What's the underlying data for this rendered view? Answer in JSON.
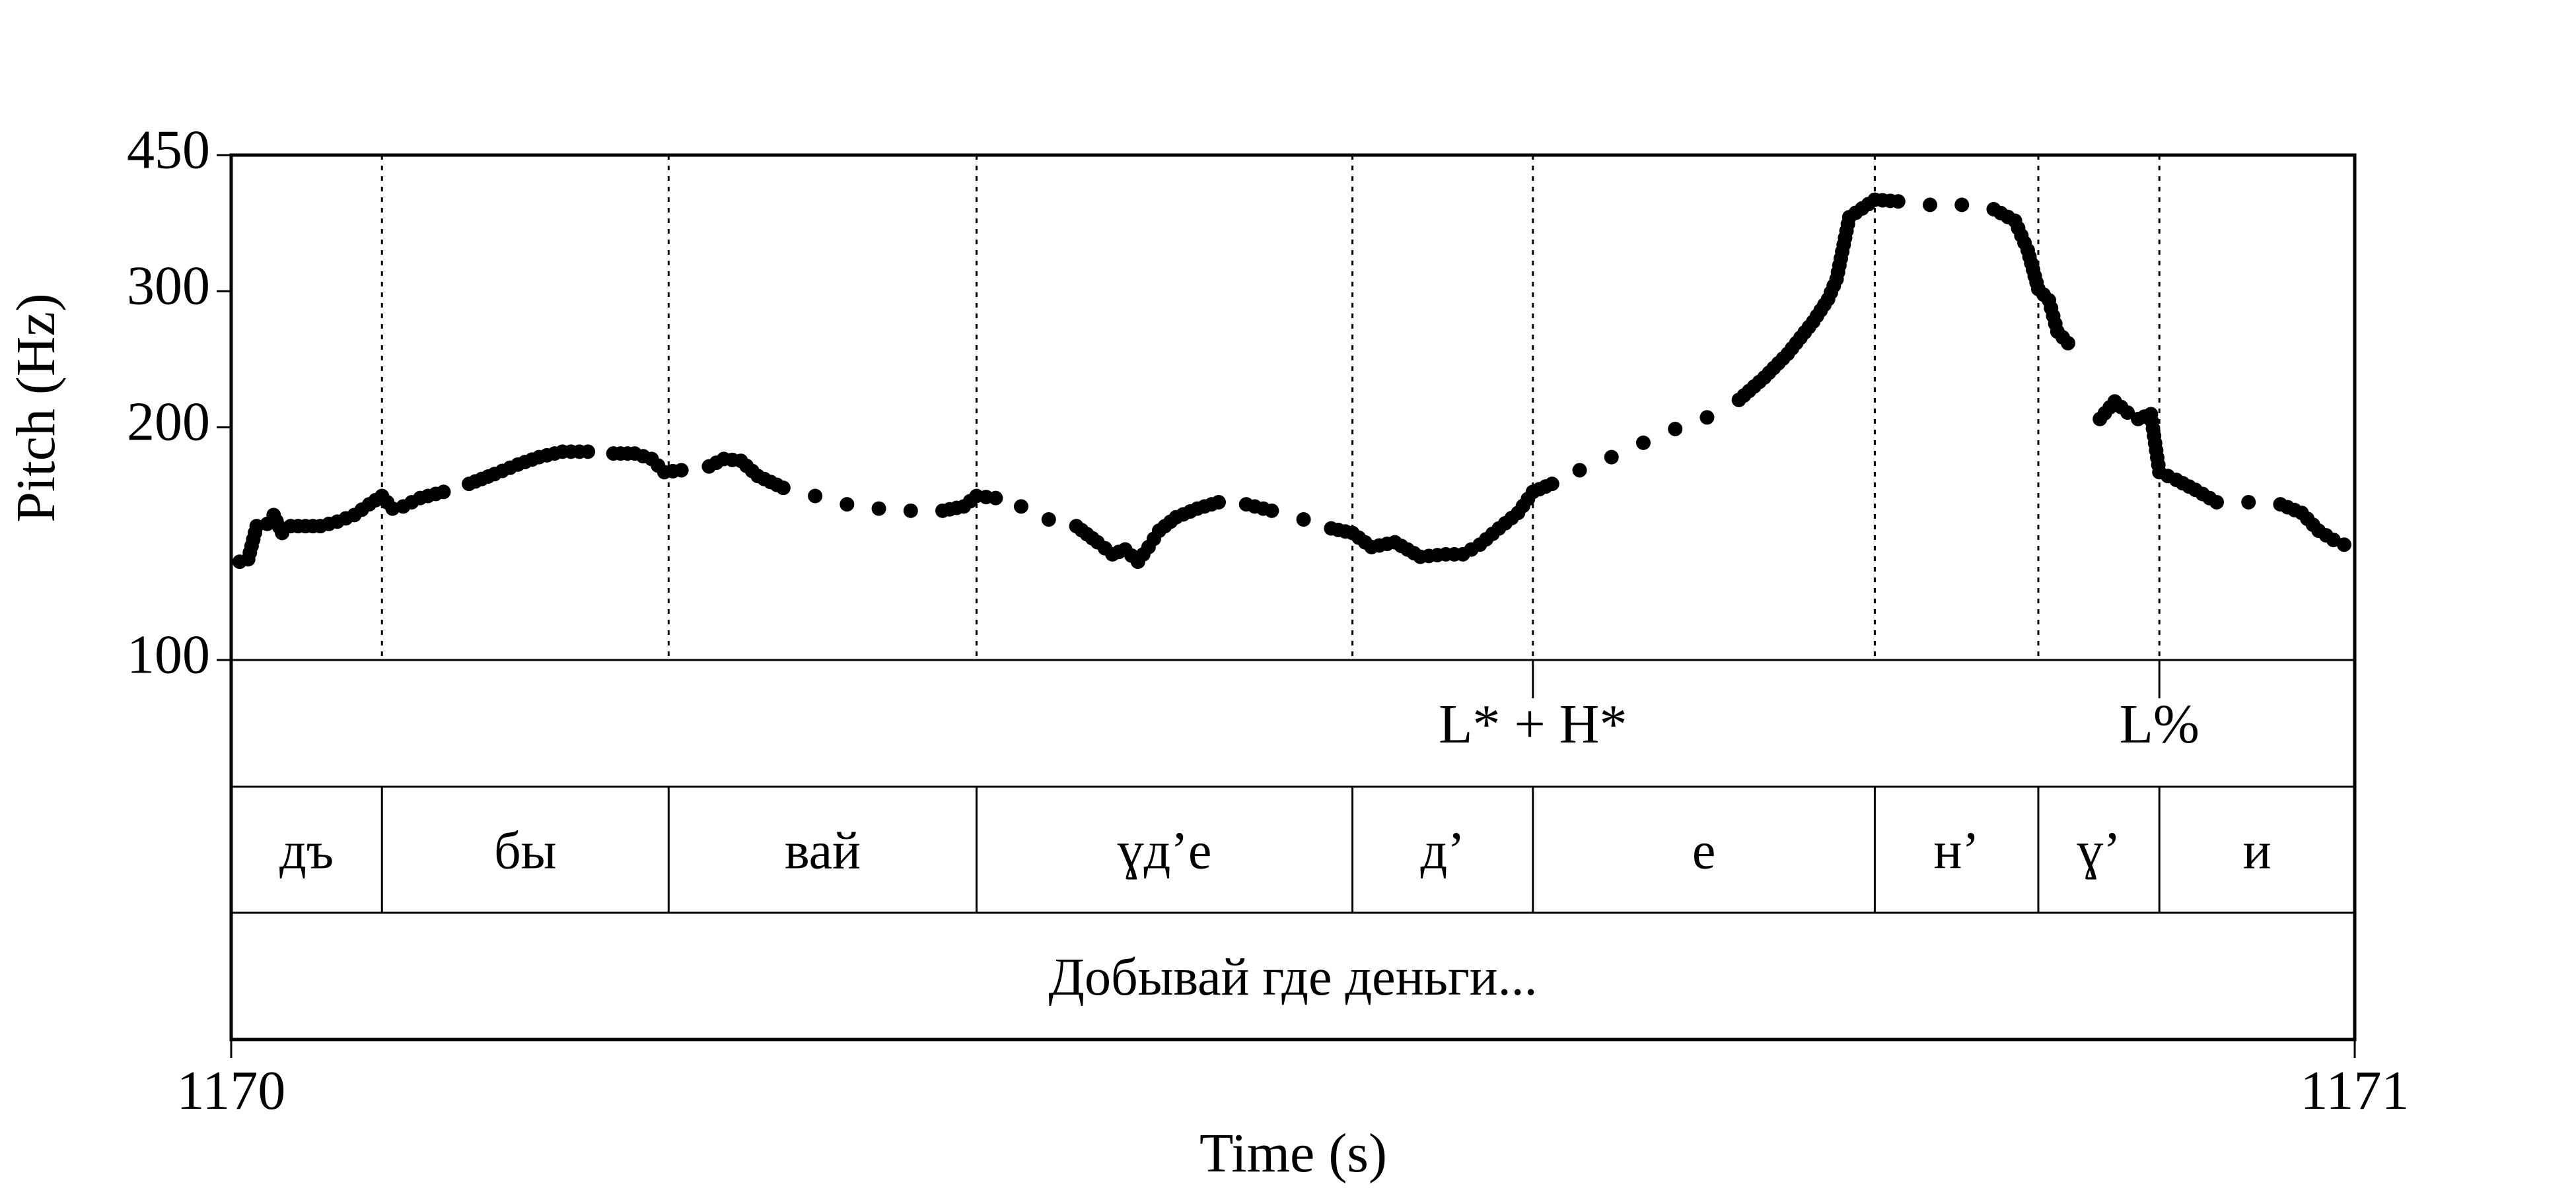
{
  "chart_data": {
    "type": "scatter",
    "title": "",
    "xlabel": "Time (s)",
    "ylabel": "Pitch (Hz)",
    "xlim": [
      1170,
      1171
    ],
    "ylim": [
      100,
      450
    ],
    "y_scale": "log",
    "x_ticks": [
      "1170",
      "1171"
    ],
    "y_ticks": [
      "100",
      "200",
      "300",
      "450"
    ],
    "segment_boundaries": [
      1170.071,
      1170.206,
      1170.351,
      1170.528,
      1170.613,
      1170.774,
      1170.851,
      1170.908
    ],
    "tone_tier": [
      {
        "label": "L* + H*",
        "time": 1170.613
      },
      {
        "label": "L%",
        "time": 1170.908
      }
    ],
    "segment_tier": [
      {
        "label": "дъ",
        "start": 1170.0,
        "end": 1170.071
      },
      {
        "label": "бы",
        "start": 1170.071,
        "end": 1170.206
      },
      {
        "label": "вай",
        "start": 1170.206,
        "end": 1170.351
      },
      {
        "label": "ɣд’е",
        "start": 1170.351,
        "end": 1170.528
      },
      {
        "label": "д’",
        "start": 1170.528,
        "end": 1170.613
      },
      {
        "label": "е",
        "start": 1170.613,
        "end": 1170.774
      },
      {
        "label": "н’",
        "start": 1170.774,
        "end": 1170.851
      },
      {
        "label": "ɣ’",
        "start": 1170.851,
        "end": 1170.908
      },
      {
        "label": "и",
        "start": 1170.908,
        "end": 1171.0
      }
    ],
    "phrase_tier": [
      {
        "label": "Добывай где деньги...",
        "start": 1170.0,
        "end": 1171.0
      }
    ],
    "pitch_series": [
      {
        "name": "",
        "points": [
          [
            1170.004,
            134
          ],
          [
            1170.008,
            135
          ],
          [
            1170.012,
            149
          ],
          [
            1170.017,
            150
          ],
          [
            1170.02,
            154
          ],
          [
            1170.024,
            146
          ],
          [
            1170.028,
            149
          ],
          [
            1170.035,
            149
          ],
          [
            1170.042,
            149
          ],
          [
            1170.05,
            151
          ],
          [
            1170.058,
            154
          ],
          [
            1170.065,
            159
          ],
          [
            1170.071,
            163
          ],
          [
            1170.076,
            157
          ],
          [
            1170.081,
            158
          ],
          [
            1170.089,
            162
          ],
          [
            1170.1,
            165
          ],
          [
            1170.112,
            169
          ],
          [
            1170.124,
            174
          ],
          [
            1170.135,
            179
          ],
          [
            1170.145,
            183
          ],
          [
            1170.156,
            186
          ],
          [
            1170.168,
            186
          ],
          [
            1170.18,
            185
          ],
          [
            1170.19,
            185
          ],
          [
            1170.198,
            182
          ],
          [
            1170.204,
            175
          ],
          [
            1170.212,
            176
          ],
          [
            1170.225,
            178
          ],
          [
            1170.232,
            182
          ],
          [
            1170.24,
            181
          ],
          [
            1170.248,
            173
          ],
          [
            1170.26,
            167
          ],
          [
            1170.275,
            163
          ],
          [
            1170.29,
            159
          ],
          [
            1170.305,
            157
          ],
          [
            1170.32,
            156
          ],
          [
            1170.335,
            156
          ],
          [
            1170.345,
            158
          ],
          [
            1170.351,
            163
          ],
          [
            1170.36,
            162
          ],
          [
            1170.372,
            158
          ],
          [
            1170.385,
            152
          ],
          [
            1170.398,
            149
          ],
          [
            1170.408,
            142
          ],
          [
            1170.415,
            137
          ],
          [
            1170.421,
            139
          ],
          [
            1170.427,
            134
          ],
          [
            1170.432,
            140
          ],
          [
            1170.437,
            147
          ],
          [
            1170.445,
            153
          ],
          [
            1170.455,
            157
          ],
          [
            1170.465,
            160
          ],
          [
            1170.478,
            159
          ],
          [
            1170.49,
            156
          ],
          [
            1170.505,
            152
          ],
          [
            1170.518,
            148
          ],
          [
            1170.528,
            146
          ],
          [
            1170.537,
            140
          ],
          [
            1170.548,
            142
          ],
          [
            1170.56,
            136
          ],
          [
            1170.572,
            137
          ],
          [
            1170.58,
            137
          ],
          [
            1170.588,
            141
          ],
          [
            1170.597,
            148
          ],
          [
            1170.606,
            155
          ],
          [
            1170.613,
            165
          ],
          [
            1170.622,
            169
          ],
          [
            1170.635,
            176
          ],
          [
            1170.65,
            183
          ],
          [
            1170.665,
            191
          ],
          [
            1170.68,
            199
          ],
          [
            1170.695,
            206
          ],
          [
            1170.71,
            217
          ],
          [
            1170.722,
            232
          ],
          [
            1170.733,
            249
          ],
          [
            1170.745,
            274
          ],
          [
            1170.752,
            293
          ],
          [
            1170.756,
            311
          ],
          [
            1170.762,
            374
          ],
          [
            1170.774,
            394
          ],
          [
            1170.785,
            392
          ],
          [
            1170.8,
            388
          ],
          [
            1170.815,
            388
          ],
          [
            1170.83,
            383
          ],
          [
            1170.84,
            370
          ],
          [
            1170.846,
            339
          ],
          [
            1170.851,
            302
          ],
          [
            1170.856,
            292
          ],
          [
            1170.86,
            266
          ],
          [
            1170.865,
            257
          ],
          [
            1170.88,
            205
          ],
          [
            1170.887,
            216
          ],
          [
            1170.893,
            209
          ],
          [
            1170.898,
            205
          ],
          [
            1170.904,
            208
          ],
          [
            1170.908,
            175
          ],
          [
            1170.916,
            171
          ],
          [
            1170.925,
            166
          ],
          [
            1170.935,
            160
          ],
          [
            1170.95,
            160
          ],
          [
            1170.965,
            159
          ],
          [
            1170.975,
            155
          ],
          [
            1170.983,
            147
          ],
          [
            1170.99,
            143
          ],
          [
            1170.995,
            141
          ]
        ]
      }
    ]
  }
}
